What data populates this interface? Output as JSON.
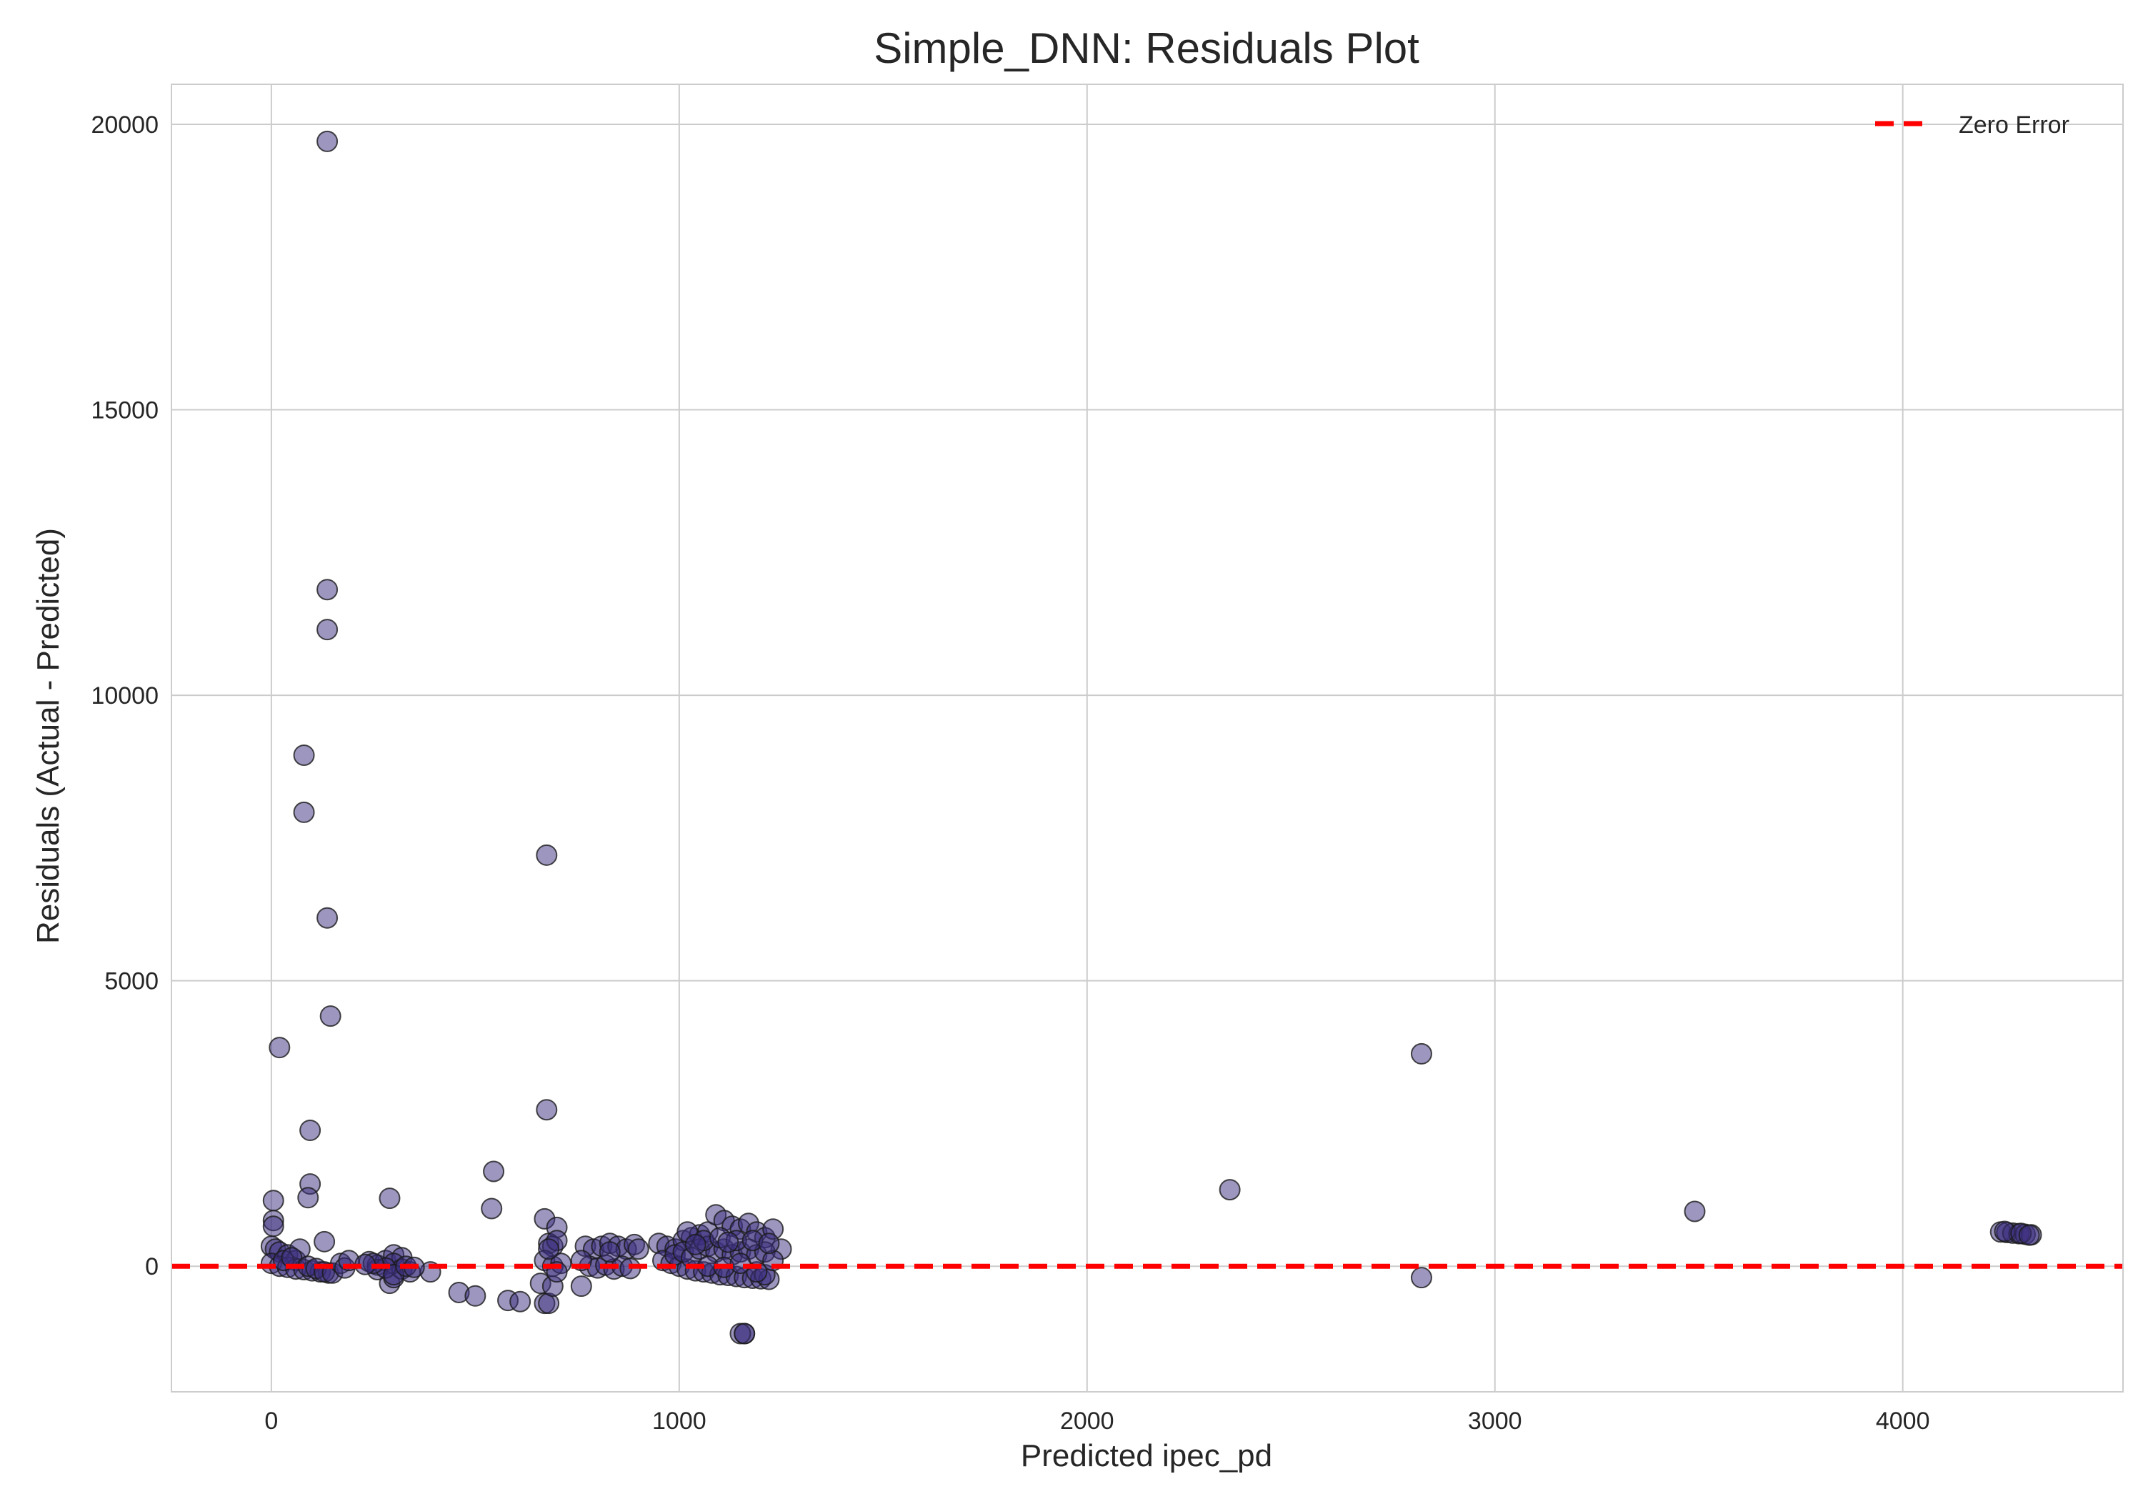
{
  "chart_data": {
    "type": "scatter",
    "title": "Simple_DNN: Residuals Plot",
    "xlabel": "Predicted ipec_pd",
    "ylabel": "Residuals (Actual - Predicted)",
    "xlim": [
      -245,
      4540
    ],
    "ylim": [
      -2200,
      20700
    ],
    "xticks": [
      0,
      1000,
      2000,
      3000,
      4000
    ],
    "yticks": [
      0,
      5000,
      10000,
      15000,
      20000
    ],
    "grid": true,
    "legend": {
      "position": "top-right",
      "entries": [
        {
          "label": "Zero Error",
          "style": "dashed-line",
          "color": "#ff0000"
        }
      ]
    },
    "reference_line": {
      "y": 0,
      "label": "Zero Error",
      "color": "#ff0000",
      "style": "dashed"
    },
    "point_color": "#3b2e7e",
    "point_edge_color": "#1a1a1a",
    "series": [
      {
        "points": [
          [
            137,
            19700
          ],
          [
            137,
            11850
          ],
          [
            137,
            11150
          ],
          [
            80,
            8950
          ],
          [
            80,
            7950
          ],
          [
            137,
            6100
          ],
          [
            145,
            4380
          ],
          [
            20,
            3830
          ],
          [
            675,
            7200
          ],
          [
            675,
            2740
          ],
          [
            95,
            2380
          ],
          [
            95,
            1440
          ],
          [
            90,
            1200
          ],
          [
            5,
            1150
          ],
          [
            130,
            430
          ],
          [
            5,
            800
          ],
          [
            5,
            700
          ],
          [
            290,
            1190
          ],
          [
            545,
            1660
          ],
          [
            540,
            1010
          ],
          [
            670,
            830
          ],
          [
            700,
            680
          ],
          [
            2820,
            3720
          ],
          [
            2350,
            1340
          ],
          [
            3490,
            960
          ],
          [
            2820,
            -200
          ],
          [
            1160,
            -1180
          ],
          [
            1150,
            -1180
          ],
          [
            1160,
            -1180
          ],
          [
            460,
            -460
          ],
          [
            500,
            -520
          ],
          [
            580,
            -600
          ],
          [
            610,
            -620
          ],
          [
            670,
            -650
          ],
          [
            680,
            -650
          ],
          [
            660,
            -300
          ],
          [
            690,
            -350
          ],
          [
            760,
            -350
          ],
          [
            290,
            -300
          ],
          [
            300,
            -200
          ],
          [
            390,
            -100
          ],
          [
            0,
            350
          ],
          [
            10,
            300
          ],
          [
            20,
            250
          ],
          [
            40,
            200
          ],
          [
            60,
            100
          ],
          [
            0,
            50
          ],
          [
            20,
            0
          ],
          [
            40,
            -20
          ],
          [
            60,
            -50
          ],
          [
            80,
            -60
          ],
          [
            100,
            -80
          ],
          [
            120,
            -100
          ],
          [
            140,
            -120
          ],
          [
            30,
            100
          ],
          [
            70,
            300
          ],
          [
            50,
            150
          ],
          [
            90,
            0
          ],
          [
            110,
            -40
          ],
          [
            130,
            -100
          ],
          [
            150,
            -120
          ],
          [
            170,
            50
          ],
          [
            180,
            -30
          ],
          [
            190,
            100
          ],
          [
            240,
            80
          ],
          [
            260,
            20
          ],
          [
            280,
            100
          ],
          [
            300,
            200
          ],
          [
            320,
            150
          ],
          [
            300,
            50
          ],
          [
            320,
            -50
          ],
          [
            340,
            -100
          ],
          [
            260,
            -60
          ],
          [
            280,
            -30
          ],
          [
            300,
            -150
          ],
          [
            330,
            0
          ],
          [
            350,
            -20
          ],
          [
            250,
            50
          ],
          [
            230,
            30
          ],
          [
            680,
            400
          ],
          [
            690,
            350
          ],
          [
            700,
            450
          ],
          [
            670,
            100
          ],
          [
            690,
            0
          ],
          [
            710,
            50
          ],
          [
            700,
            -100
          ],
          [
            680,
            300
          ],
          [
            770,
            350
          ],
          [
            790,
            300
          ],
          [
            810,
            350
          ],
          [
            830,
            400
          ],
          [
            850,
            350
          ],
          [
            870,
            300
          ],
          [
            890,
            380
          ],
          [
            780,
            0
          ],
          [
            800,
            -30
          ],
          [
            820,
            20
          ],
          [
            840,
            -50
          ],
          [
            860,
            0
          ],
          [
            880,
            -40
          ],
          [
            900,
            300
          ],
          [
            760,
            100
          ],
          [
            830,
            250
          ],
          [
            950,
            400
          ],
          [
            970,
            350
          ],
          [
            990,
            300
          ],
          [
            1010,
            450
          ],
          [
            1030,
            500
          ],
          [
            1050,
            550
          ],
          [
            1070,
            600
          ],
          [
            1090,
            900
          ],
          [
            1110,
            800
          ],
          [
            1130,
            700
          ],
          [
            1150,
            650
          ],
          [
            1170,
            750
          ],
          [
            1190,
            600
          ],
          [
            1210,
            500
          ],
          [
            1230,
            650
          ],
          [
            1250,
            300
          ],
          [
            960,
            100
          ],
          [
            980,
            50
          ],
          [
            1000,
            0
          ],
          [
            1020,
            -50
          ],
          [
            1040,
            -80
          ],
          [
            1060,
            -100
          ],
          [
            1080,
            -120
          ],
          [
            1100,
            -150
          ],
          [
            1120,
            -160
          ],
          [
            1140,
            -180
          ],
          [
            1160,
            -200
          ],
          [
            1180,
            -210
          ],
          [
            1200,
            -220
          ],
          [
            1220,
            -230
          ],
          [
            1210,
            -150
          ],
          [
            1190,
            -100
          ],
          [
            990,
            200
          ],
          [
            1010,
            250
          ],
          [
            1030,
            150
          ],
          [
            1050,
            300
          ],
          [
            1070,
            350
          ],
          [
            1090,
            250
          ],
          [
            1110,
            300
          ],
          [
            1130,
            200
          ],
          [
            1150,
            250
          ],
          [
            1170,
            300
          ],
          [
            1190,
            200
          ],
          [
            1210,
            250
          ],
          [
            1230,
            100
          ],
          [
            1070,
            0
          ],
          [
            1110,
            -20
          ],
          [
            1150,
            50
          ],
          [
            1020,
            600
          ],
          [
            1060,
            450
          ],
          [
            1100,
            500
          ],
          [
            1140,
            450
          ],
          [
            1180,
            450
          ],
          [
            1220,
            400
          ],
          [
            1040,
            380
          ],
          [
            1120,
            420
          ],
          [
            4240,
            600
          ],
          [
            4255,
            590
          ],
          [
            4270,
            580
          ],
          [
            4285,
            570
          ],
          [
            4300,
            560
          ],
          [
            4315,
            550
          ],
          [
            4250,
            610
          ],
          [
            4290,
            575
          ],
          [
            4310,
            545
          ]
        ]
      }
    ]
  }
}
